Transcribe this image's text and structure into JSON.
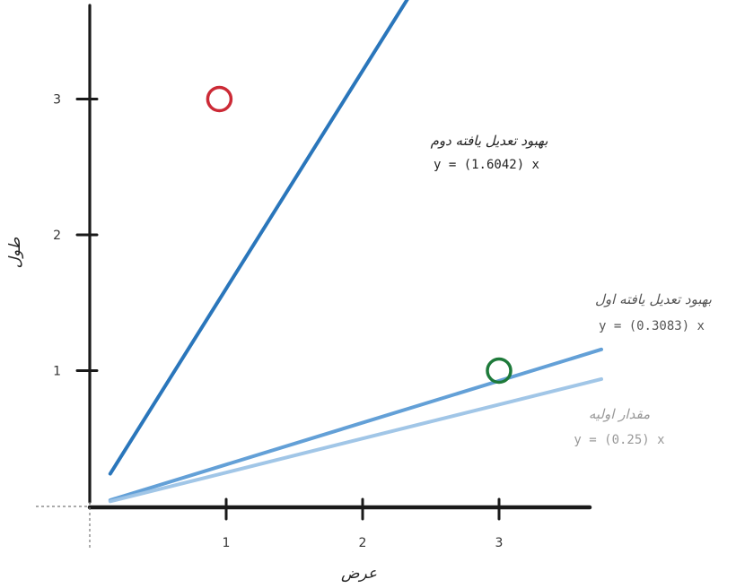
{
  "chart_data": {
    "type": "scatter",
    "xlabel": "عرض",
    "ylabel": "طول",
    "xlim": [
      -0.95,
      3.75
    ],
    "ylim": [
      -0.2,
      3.75
    ],
    "x_ticks": [
      "1",
      "2",
      "3"
    ],
    "y_ticks": [
      "1",
      "2",
      "3"
    ],
    "grid": false,
    "points": [
      {
        "x": 0.95,
        "y": 3.0,
        "color": "#cc2a36"
      },
      {
        "x": 3.0,
        "y": 1.0,
        "color": "#1e7a3a"
      }
    ],
    "series": [
      {
        "name": "بهبود تعدیل یافته دوم",
        "equation": "y = (1.6042) x",
        "slope": 1.6042,
        "x_range": [
          0.15,
          2.5
        ],
        "color": "#1f6fb8"
      },
      {
        "name": "بهبود تعدیل یافته اول",
        "equation": "y = (0.3083) x",
        "slope": 0.3083,
        "x_range": [
          0.15,
          3.75
        ],
        "color": "#5b9bd5"
      },
      {
        "name": "مقدار اولیه",
        "equation": "y = (0.25) x",
        "slope": 0.25,
        "x_range": [
          0.15,
          3.75
        ],
        "color": "#9cc3e6"
      }
    ]
  },
  "colors": {
    "axis": "#1a1a1a",
    "dark_label": "#222222",
    "mid_label": "#555555",
    "light_label": "#999999"
  }
}
